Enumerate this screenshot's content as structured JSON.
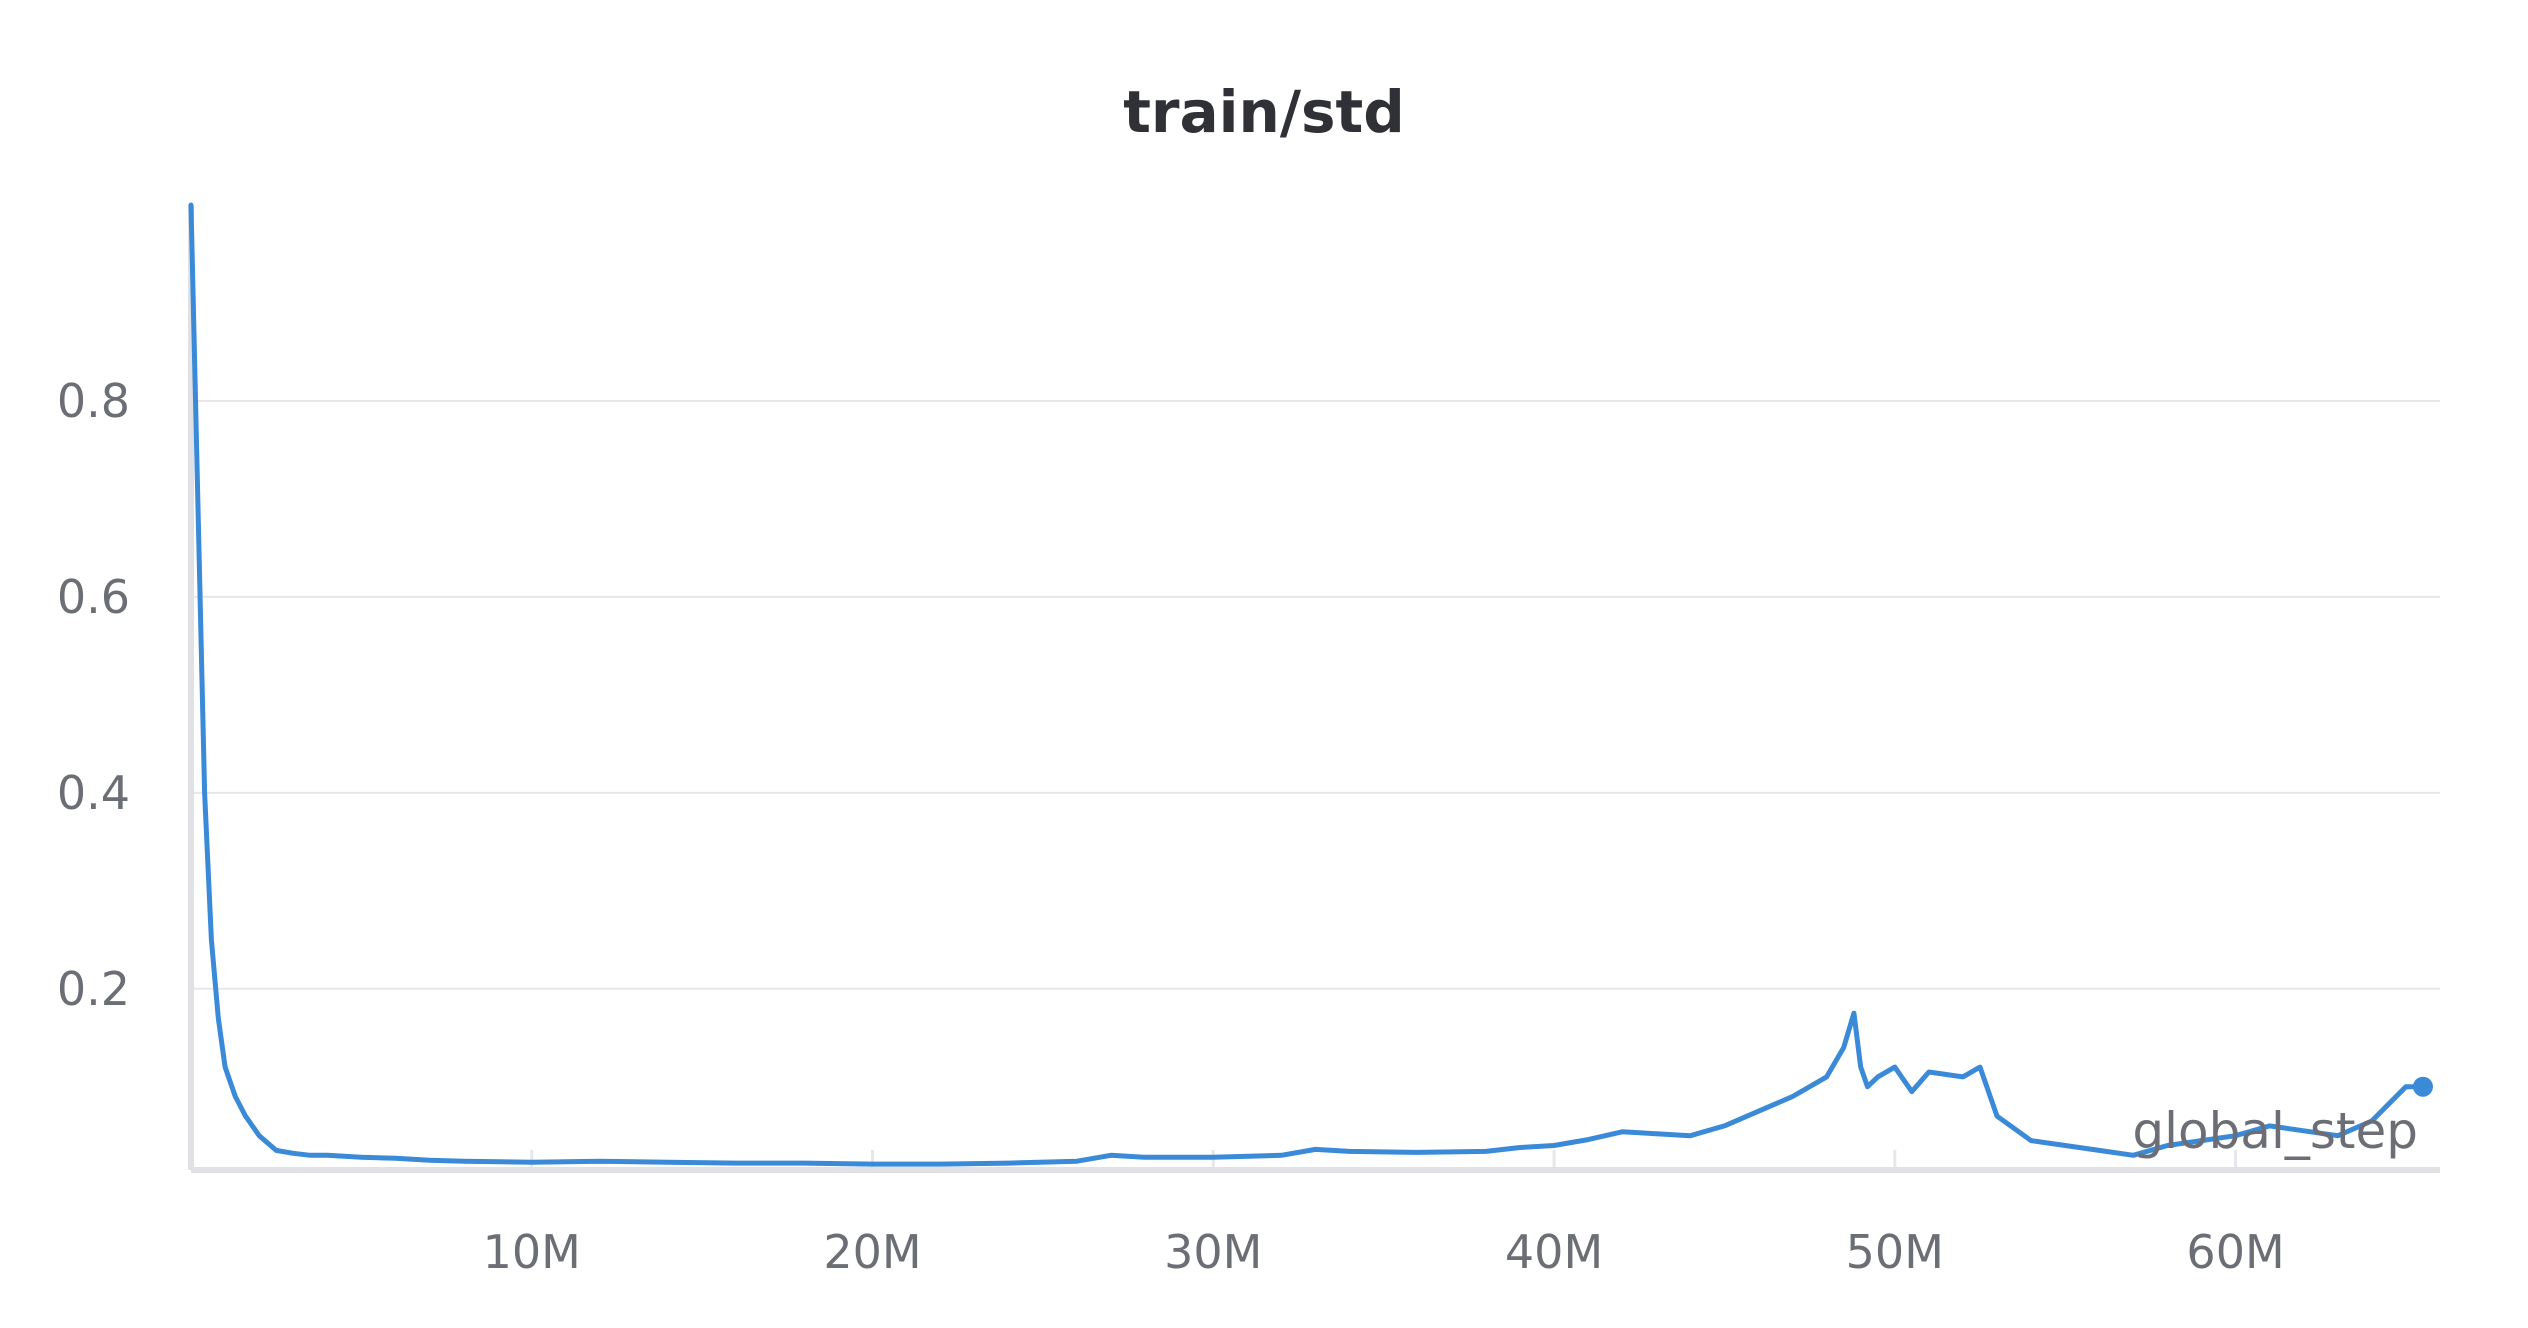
{
  "chart_data": {
    "type": "line",
    "title": "train/std",
    "xlabel": "global_step",
    "ylabel": "",
    "xlim": [
      0,
      66000000
    ],
    "ylim": [
      0.015,
      1.0
    ],
    "x_ticks": [
      {
        "value": 10000000,
        "label": "10M"
      },
      {
        "value": 20000000,
        "label": "20M"
      },
      {
        "value": 30000000,
        "label": "30M"
      },
      {
        "value": 40000000,
        "label": "40M"
      },
      {
        "value": 50000000,
        "label": "50M"
      },
      {
        "value": 60000000,
        "label": "60M"
      }
    ],
    "y_ticks": [
      {
        "value": 0.2,
        "label": "0.2"
      },
      {
        "value": 0.4,
        "label": "0.4"
      },
      {
        "value": 0.6,
        "label": "0.6"
      },
      {
        "value": 0.8,
        "label": "0.8"
      }
    ],
    "grid": true,
    "line_color": "#3a8ad8",
    "series": [
      {
        "name": "",
        "x": [
          0,
          200000,
          400000,
          600000,
          800000,
          1000000,
          1300000,
          1600000,
          2000000,
          2500000,
          3000000,
          3500000,
          4000000,
          5000000,
          6000000,
          7000000,
          8000000,
          10000000,
          12000000,
          14000000,
          16000000,
          18000000,
          20000000,
          22000000,
          24000000,
          26000000,
          27000000,
          28000000,
          30000000,
          32000000,
          33000000,
          34000000,
          36000000,
          38000000,
          39000000,
          40000000,
          41000000,
          42000000,
          43000000,
          44000000,
          45000000,
          46000000,
          47000000,
          48000000,
          48500000,
          48800000,
          49000000,
          49200000,
          49500000,
          50000000,
          50500000,
          51000000,
          52000000,
          52500000,
          53000000,
          54000000,
          55000000,
          56000000,
          57000000,
          58000000,
          59000000,
          60000000,
          61000000,
          62000000,
          63000000,
          64000000,
          65000000,
          65500000
        ],
        "values": [
          1.0,
          0.7,
          0.4,
          0.25,
          0.17,
          0.12,
          0.09,
          0.07,
          0.05,
          0.035,
          0.032,
          0.03,
          0.03,
          0.028,
          0.027,
          0.025,
          0.024,
          0.023,
          0.024,
          0.023,
          0.022,
          0.022,
          0.021,
          0.021,
          0.022,
          0.024,
          0.03,
          0.028,
          0.028,
          0.03,
          0.036,
          0.034,
          0.033,
          0.034,
          0.038,
          0.04,
          0.046,
          0.054,
          0.052,
          0.05,
          0.06,
          0.075,
          0.09,
          0.11,
          0.14,
          0.175,
          0.12,
          0.1,
          0.11,
          0.12,
          0.095,
          0.115,
          0.11,
          0.12,
          0.07,
          0.045,
          0.04,
          0.035,
          0.03,
          0.04,
          0.045,
          0.05,
          0.06,
          0.055,
          0.05,
          0.065,
          0.1,
          0.1
        ]
      }
    ]
  }
}
